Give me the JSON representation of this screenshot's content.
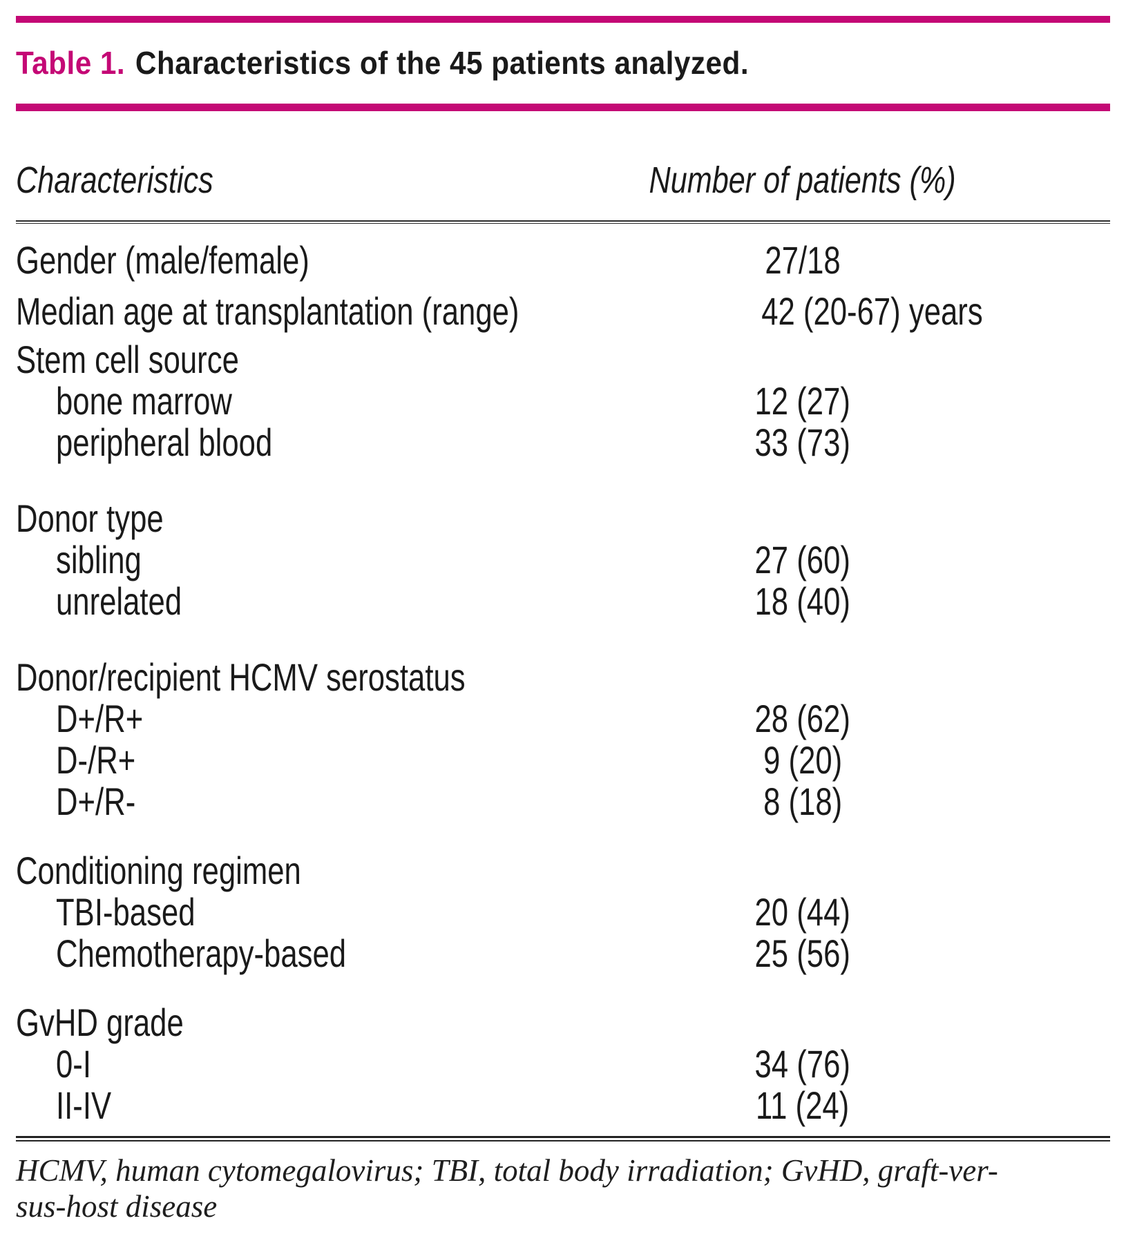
{
  "colors": {
    "accent": "#C40875",
    "text": "#1A1A1A"
  },
  "title": {
    "number": "Table 1.",
    "text": "Characteristics of the 45 patients analyzed."
  },
  "table": {
    "headers": {
      "col1": "Characteristics",
      "col2": "Number of patients (%)"
    },
    "rows": [
      {
        "label": "Gender (male/female)",
        "value": "27/18",
        "indent": false
      },
      {
        "label": "Median age at transplantation (range)",
        "value": "42 (20-67) years",
        "indent": false
      },
      {
        "label": "Stem cell source",
        "value": "",
        "indent": false
      },
      {
        "label": "bone marrow",
        "value": "12 (27)",
        "indent": true
      },
      {
        "label": "peripheral blood",
        "value": "33 (73)",
        "indent": true
      },
      {
        "label": "Donor type",
        "value": "",
        "indent": false
      },
      {
        "label": "sibling",
        "value": "27 (60)",
        "indent": true
      },
      {
        "label": "unrelated",
        "value": "18 (40)",
        "indent": true
      },
      {
        "label": "Donor/recipient HCMV serostatus",
        "value": "",
        "indent": false
      },
      {
        "label": "D+/R+",
        "value": "28 (62)",
        "indent": true
      },
      {
        "label": "D-/R+",
        "value": "9 (20)",
        "indent": true
      },
      {
        "label": "D+/R-",
        "value": "8 (18)",
        "indent": true
      },
      {
        "label": "Conditioning regimen",
        "value": "",
        "indent": false
      },
      {
        "label": "TBI-based",
        "value": "20 (44)",
        "indent": true
      },
      {
        "label": "Chemotherapy-based",
        "value": "25 (56)",
        "indent": true
      },
      {
        "label": "GvHD grade",
        "value": "",
        "indent": false
      },
      {
        "label": "0-I",
        "value": "34 (76)",
        "indent": true
      },
      {
        "label": "II-IV",
        "value": "11 (24)",
        "indent": true
      }
    ]
  },
  "footnote": {
    "line1": "HCMV, human cytomegalovirus; TBI, total body irradiation; GvHD, graft-ver-",
    "line2": "sus-host disease"
  }
}
